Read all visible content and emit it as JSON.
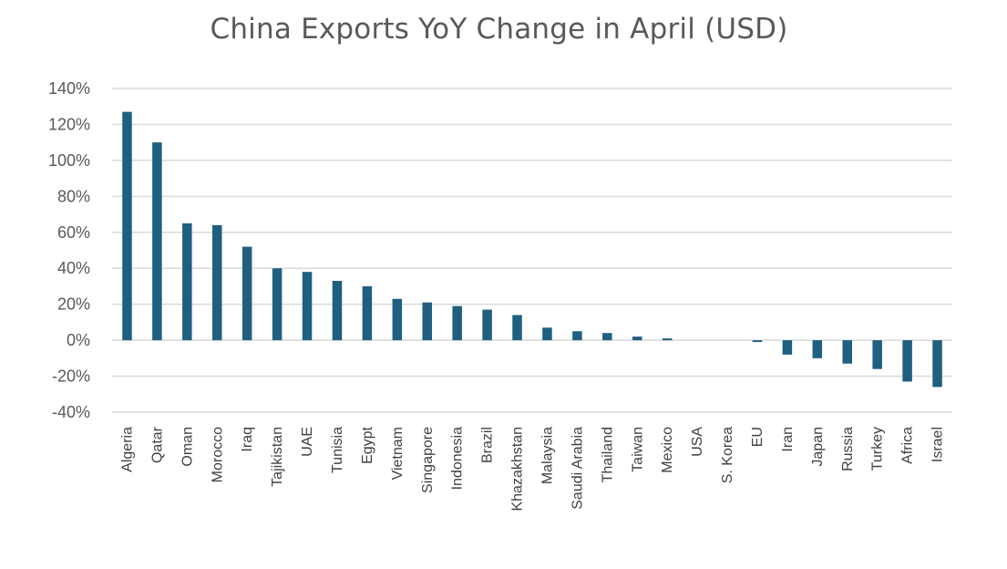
{
  "chart_data": {
    "type": "bar",
    "title": "China Exports YoY Change in April (USD)",
    "xlabel": "",
    "ylabel": "",
    "categories": [
      "Algeria",
      "Qatar",
      "Oman",
      "Morocco",
      "Iraq",
      "Tajikistan",
      "UAE",
      "Tunisia",
      "Egypt",
      "Vietnam",
      "Singapore",
      "Indonesia",
      "Brazil",
      "Khazakhstan",
      "Malaysia",
      "Saudi Arabia",
      "Thailand",
      "Taiwan",
      "Mexico",
      "USA",
      "S. Korea",
      "EU",
      "Iran",
      "Japan",
      "Russia",
      "Turkey",
      "Africa",
      "Israel"
    ],
    "values": [
      127,
      110,
      65,
      64,
      52,
      40,
      38,
      33,
      30,
      23,
      21,
      19,
      17,
      14,
      7,
      5,
      4,
      2,
      1,
      0,
      0,
      -1,
      -8,
      -10,
      -13,
      -16,
      -23,
      -26
    ],
    "ylim": [
      -40,
      140
    ],
    "yticks": [
      140,
      120,
      100,
      80,
      60,
      40,
      20,
      0,
      -20,
      -40
    ],
    "ytick_labels": [
      "140%",
      "120%",
      "100%",
      "80%",
      "60%",
      "40%",
      "20%",
      "0%",
      "-20%",
      "-40%"
    ],
    "grid": true,
    "legend": "none",
    "bar_color": "#1f5f80",
    "grid_color": "#d9d9d9"
  }
}
